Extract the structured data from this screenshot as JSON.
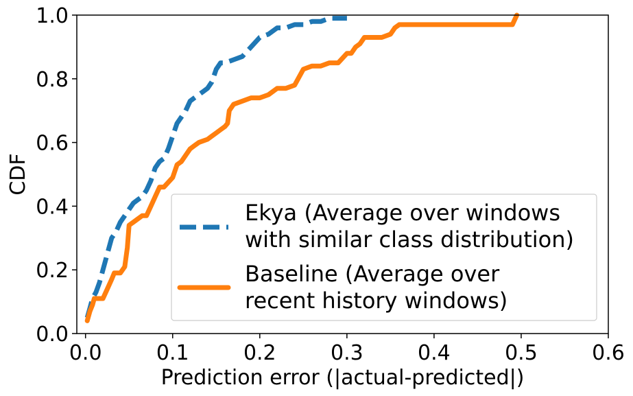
{
  "chart_data": {
    "type": "line",
    "title": "",
    "xlabel": "Prediction error (|actual-predicted|)",
    "ylabel": "CDF",
    "xlim": [
      -0.01,
      0.6
    ],
    "ylim": [
      0.0,
      1.0
    ],
    "xticks": [
      "0.0",
      "0.1",
      "0.2",
      "0.3",
      "0.4",
      "0.5",
      "0.6"
    ],
    "yticks": [
      "0.0",
      "0.2",
      "0.4",
      "0.6",
      "0.8",
      "1.0"
    ],
    "legend_position": "bottom-right",
    "grid": false,
    "series": [
      {
        "name_lines": [
          "Ekya (Average over windows",
          "with similar class distribution)"
        ],
        "color": "#1f77b4",
        "style": "dashed",
        "x": [
          0.002,
          0.005,
          0.008,
          0.012,
          0.016,
          0.02,
          0.024,
          0.027,
          0.03,
          0.035,
          0.04,
          0.045,
          0.05,
          0.055,
          0.06,
          0.065,
          0.07,
          0.075,
          0.08,
          0.085,
          0.09,
          0.095,
          0.1,
          0.105,
          0.11,
          0.115,
          0.12,
          0.125,
          0.13,
          0.135,
          0.14,
          0.145,
          0.15,
          0.155,
          0.16,
          0.17,
          0.18,
          0.19,
          0.2,
          0.21,
          0.22,
          0.23,
          0.24,
          0.25,
          0.26,
          0.27,
          0.28,
          0.29,
          0.3
        ],
        "y": [
          0.05,
          0.08,
          0.11,
          0.13,
          0.16,
          0.2,
          0.24,
          0.27,
          0.3,
          0.32,
          0.35,
          0.37,
          0.39,
          0.41,
          0.42,
          0.43,
          0.45,
          0.48,
          0.52,
          0.54,
          0.55,
          0.58,
          0.62,
          0.66,
          0.68,
          0.7,
          0.73,
          0.74,
          0.75,
          0.76,
          0.77,
          0.79,
          0.83,
          0.85,
          0.85,
          0.86,
          0.87,
          0.9,
          0.93,
          0.94,
          0.96,
          0.96,
          0.97,
          0.97,
          0.98,
          0.98,
          0.99,
          0.99,
          0.99
        ]
      },
      {
        "name_lines": [
          "Baseline (Average over",
          "recent history windows)"
        ],
        "color": "#ff7f0e",
        "style": "solid",
        "x": [
          0.002,
          0.005,
          0.008,
          0.01,
          0.014,
          0.02,
          0.025,
          0.03,
          0.033,
          0.04,
          0.045,
          0.048,
          0.05,
          0.055,
          0.06,
          0.065,
          0.07,
          0.075,
          0.08,
          0.085,
          0.09,
          0.1,
          0.105,
          0.11,
          0.115,
          0.12,
          0.125,
          0.13,
          0.14,
          0.145,
          0.15,
          0.155,
          0.16,
          0.163,
          0.165,
          0.17,
          0.18,
          0.19,
          0.2,
          0.21,
          0.22,
          0.23,
          0.24,
          0.25,
          0.26,
          0.27,
          0.28,
          0.29,
          0.3,
          0.305,
          0.31,
          0.315,
          0.32,
          0.33,
          0.34,
          0.35,
          0.355,
          0.36,
          0.38,
          0.4,
          0.43,
          0.46,
          0.48,
          0.49,
          0.495
        ],
        "y": [
          0.04,
          0.07,
          0.09,
          0.11,
          0.11,
          0.11,
          0.14,
          0.17,
          0.19,
          0.19,
          0.21,
          0.27,
          0.34,
          0.35,
          0.36,
          0.37,
          0.37,
          0.4,
          0.43,
          0.46,
          0.46,
          0.49,
          0.53,
          0.54,
          0.56,
          0.58,
          0.59,
          0.6,
          0.61,
          0.62,
          0.63,
          0.64,
          0.65,
          0.66,
          0.7,
          0.72,
          0.73,
          0.74,
          0.74,
          0.75,
          0.77,
          0.77,
          0.78,
          0.83,
          0.84,
          0.84,
          0.85,
          0.85,
          0.88,
          0.88,
          0.9,
          0.91,
          0.93,
          0.93,
          0.93,
          0.94,
          0.96,
          0.97,
          0.97,
          0.97,
          0.97,
          0.97,
          0.97,
          0.97,
          1.0
        ]
      }
    ]
  }
}
